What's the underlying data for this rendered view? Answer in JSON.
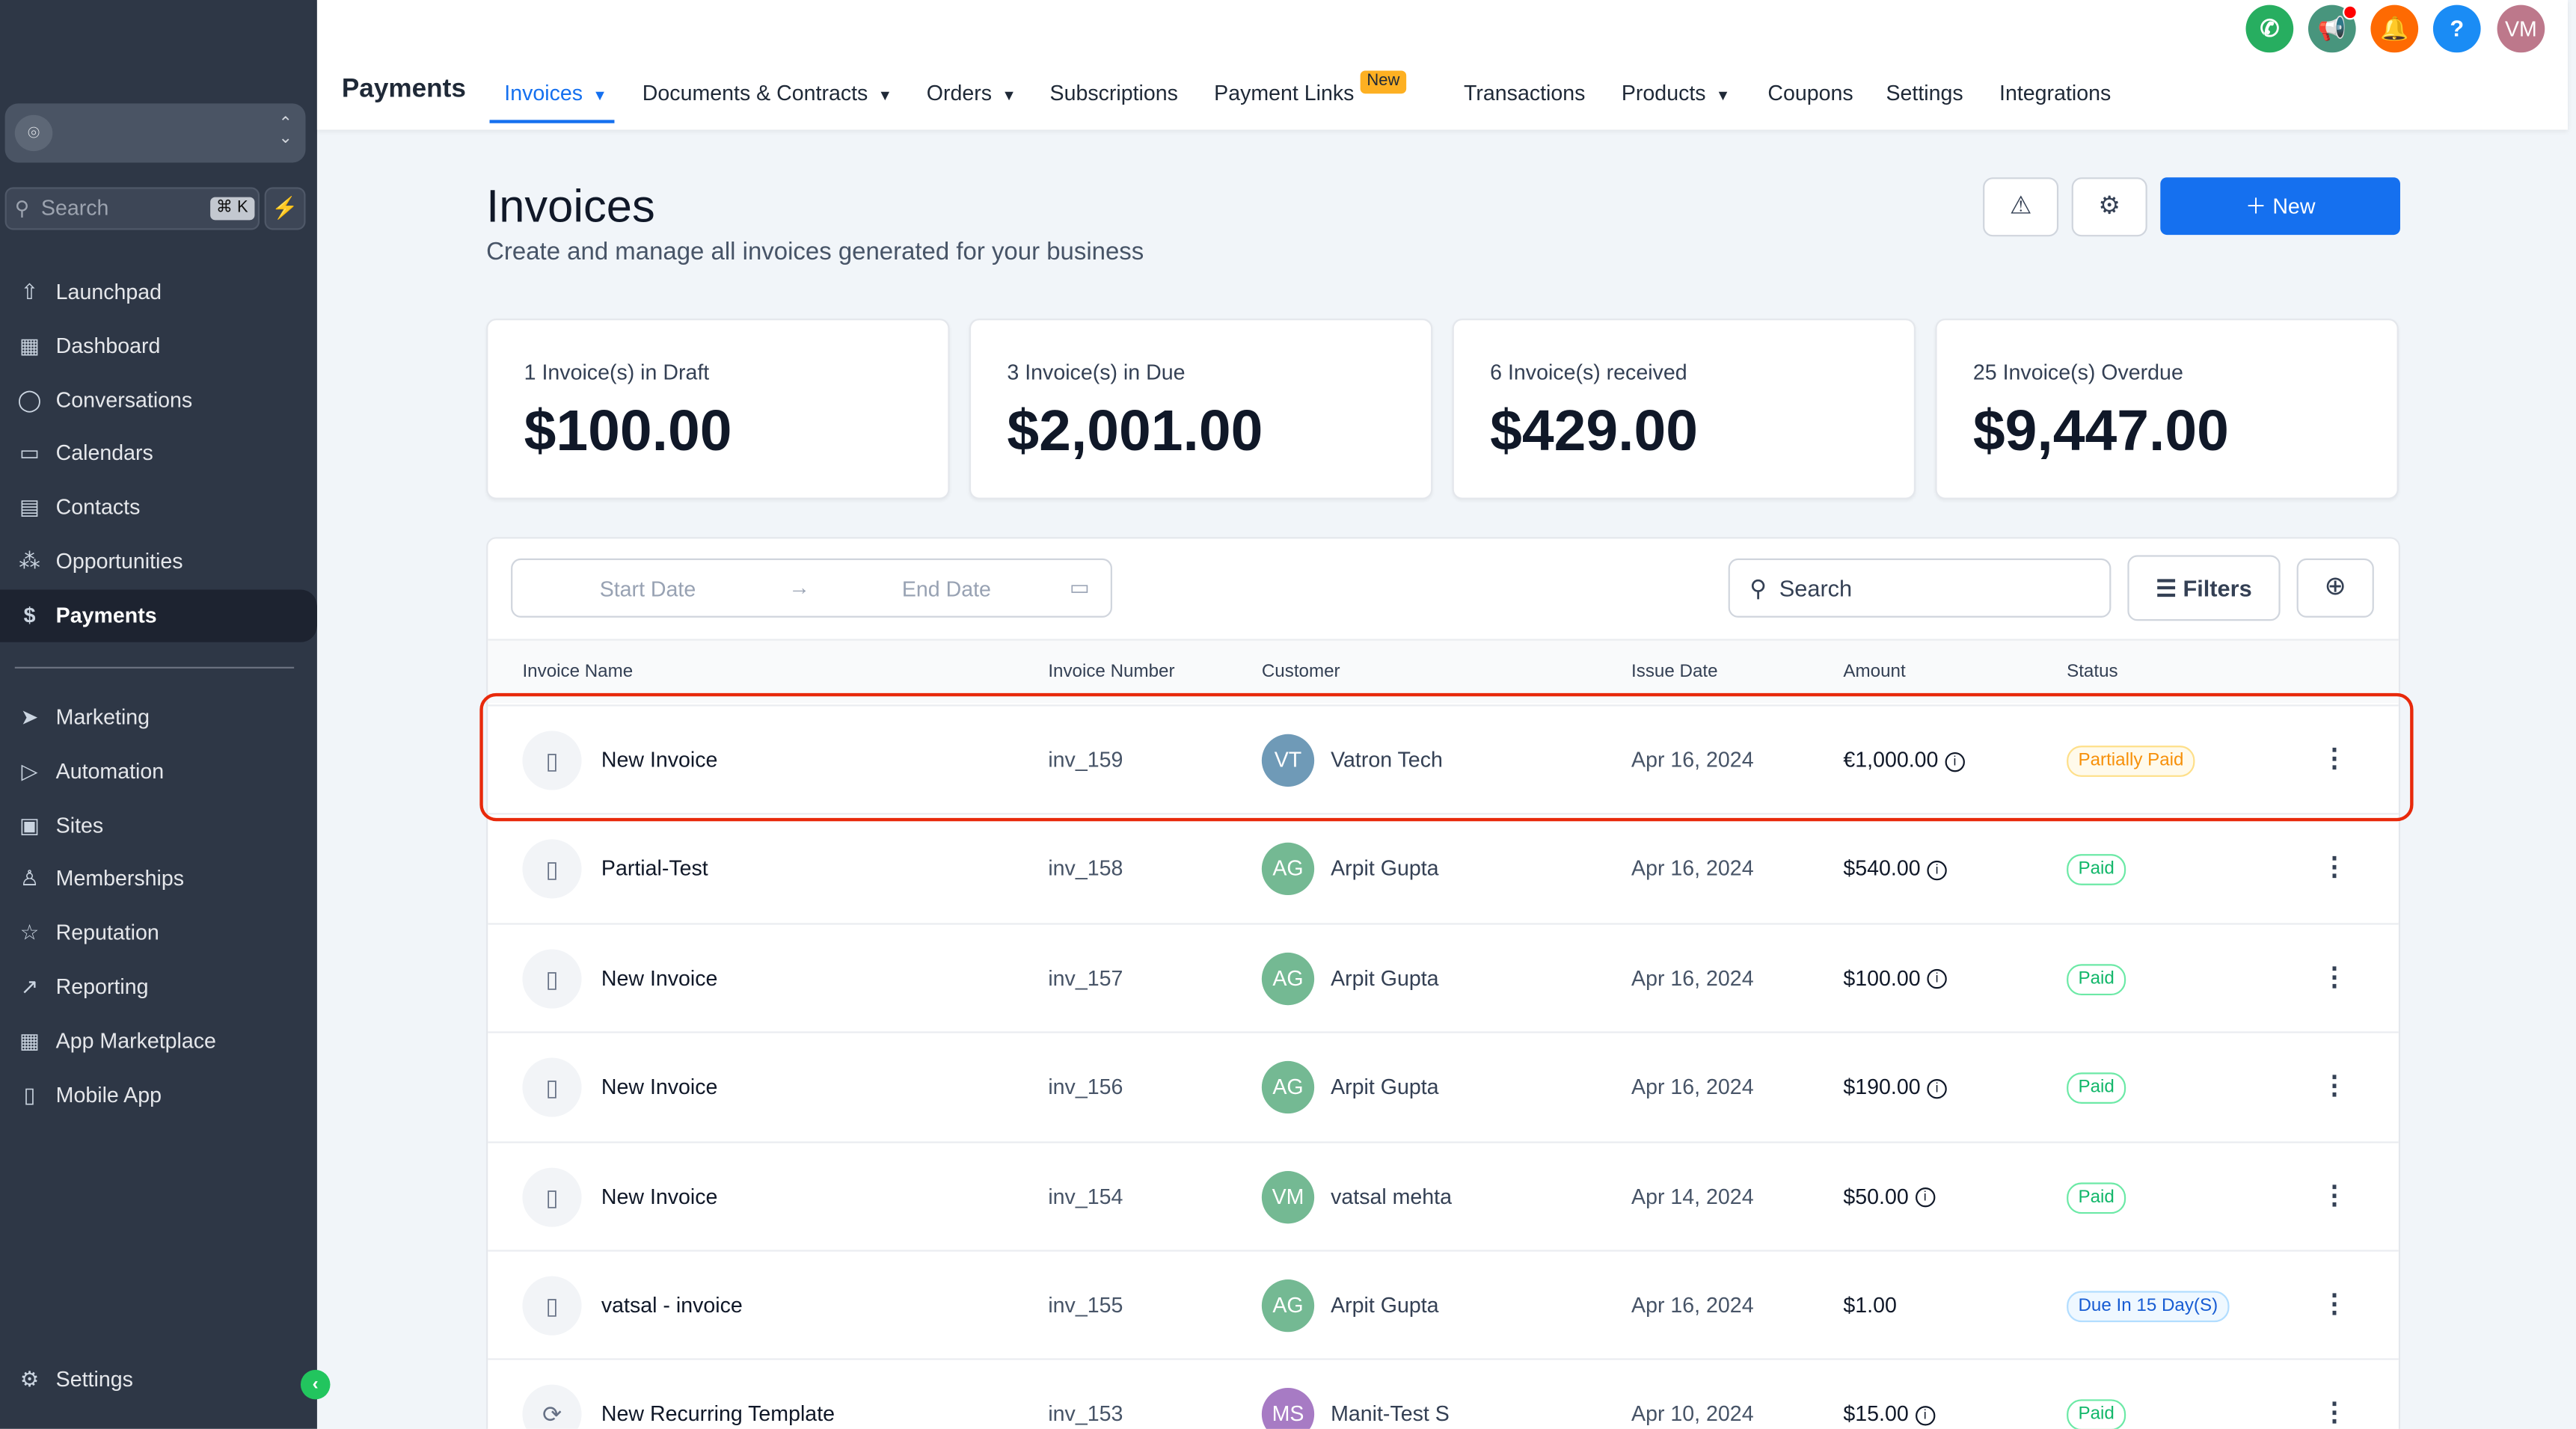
{
  "sidebar": {
    "search_placeholder": "Search",
    "shortcut": "⌘ K",
    "items": [
      {
        "label": "Launchpad",
        "icon": "⇧"
      },
      {
        "label": "Dashboard",
        "icon": "▦"
      },
      {
        "label": "Conversations",
        "icon": "◯"
      },
      {
        "label": "Calendars",
        "icon": "▭"
      },
      {
        "label": "Contacts",
        "icon": "▤"
      },
      {
        "label": "Opportunities",
        "icon": "⁂"
      },
      {
        "label": "Payments",
        "icon": "$"
      }
    ],
    "items2": [
      {
        "label": "Marketing",
        "icon": "➤"
      },
      {
        "label": "Automation",
        "icon": "▷"
      },
      {
        "label": "Sites",
        "icon": "▣"
      },
      {
        "label": "Memberships",
        "icon": "♙"
      },
      {
        "label": "Reputation",
        "icon": "☆"
      },
      {
        "label": "Reporting",
        "icon": "↗"
      },
      {
        "label": "App Marketplace",
        "icon": "▦"
      },
      {
        "label": "Mobile App",
        "icon": "▯"
      }
    ],
    "settings": "Settings"
  },
  "header": {
    "title": "Payments",
    "tabs": [
      "Invoices",
      "Documents & Contracts",
      "Orders",
      "Subscriptions",
      "Payment Links",
      "Transactions",
      "Products",
      "Coupons",
      "Settings",
      "Integrations"
    ],
    "new_badge": "New",
    "avatar": "VM"
  },
  "page": {
    "title": "Invoices",
    "subtitle": "Create and manage all invoices generated for your business",
    "new_button": "New"
  },
  "cards": [
    {
      "label": "1 Invoice(s) in Draft",
      "value": "$100.00"
    },
    {
      "label": "3 Invoice(s) in Due",
      "value": "$2,001.00"
    },
    {
      "label": "6 Invoice(s) received",
      "value": "$429.00"
    },
    {
      "label": "25 Invoice(s) Overdue",
      "value": "$9,447.00"
    }
  ],
  "filters": {
    "start_date": "Start Date",
    "end_date": "End Date",
    "search": "Search",
    "filters": "Filters"
  },
  "table": {
    "columns": [
      "Invoice Name",
      "Invoice Number",
      "Customer",
      "Issue Date",
      "Amount",
      "Status"
    ],
    "rows": [
      {
        "name": "New Invoice",
        "number": "inv_159",
        "initials": "VT",
        "customer": "Vatron Tech",
        "date": "Apr 16, 2024",
        "amount": "€1,000.00",
        "status": "Partially Paid",
        "kind": "partial",
        "avcolor": "#6f9ab7"
      },
      {
        "name": "Partial-Test",
        "number": "inv_158",
        "initials": "AG",
        "customer": "Arpit Gupta",
        "date": "Apr 16, 2024",
        "amount": "$540.00",
        "status": "Paid",
        "kind": "paid",
        "avcolor": "#74b993"
      },
      {
        "name": "New Invoice",
        "number": "inv_157",
        "initials": "AG",
        "customer": "Arpit Gupta",
        "date": "Apr 16, 2024",
        "amount": "$100.00",
        "status": "Paid",
        "kind": "paid",
        "avcolor": "#74b993"
      },
      {
        "name": "New Invoice",
        "number": "inv_156",
        "initials": "AG",
        "customer": "Arpit Gupta",
        "date": "Apr 16, 2024",
        "amount": "$190.00",
        "status": "Paid",
        "kind": "paid",
        "avcolor": "#74b993"
      },
      {
        "name": "New Invoice",
        "number": "inv_154",
        "initials": "VM",
        "customer": "vatsal mehta",
        "date": "Apr 14, 2024",
        "amount": "$50.00",
        "status": "Paid",
        "kind": "paid",
        "avcolor": "#74b993"
      },
      {
        "name": "vatsal - invoice",
        "number": "inv_155",
        "initials": "AG",
        "customer": "Arpit Gupta",
        "date": "Apr 16, 2024",
        "amount": "$1.00",
        "status": "Due In 15 Day(S)",
        "kind": "due",
        "avcolor": "#74b993",
        "noinfo": true
      },
      {
        "name": "New Recurring Template",
        "number": "inv_153",
        "initials": "MS",
        "customer": "Manit-Test S",
        "date": "Apr 10, 2024",
        "amount": "$15.00",
        "status": "Paid",
        "kind": "paid",
        "avcolor": "#a77bc4",
        "recurring": true
      }
    ]
  }
}
